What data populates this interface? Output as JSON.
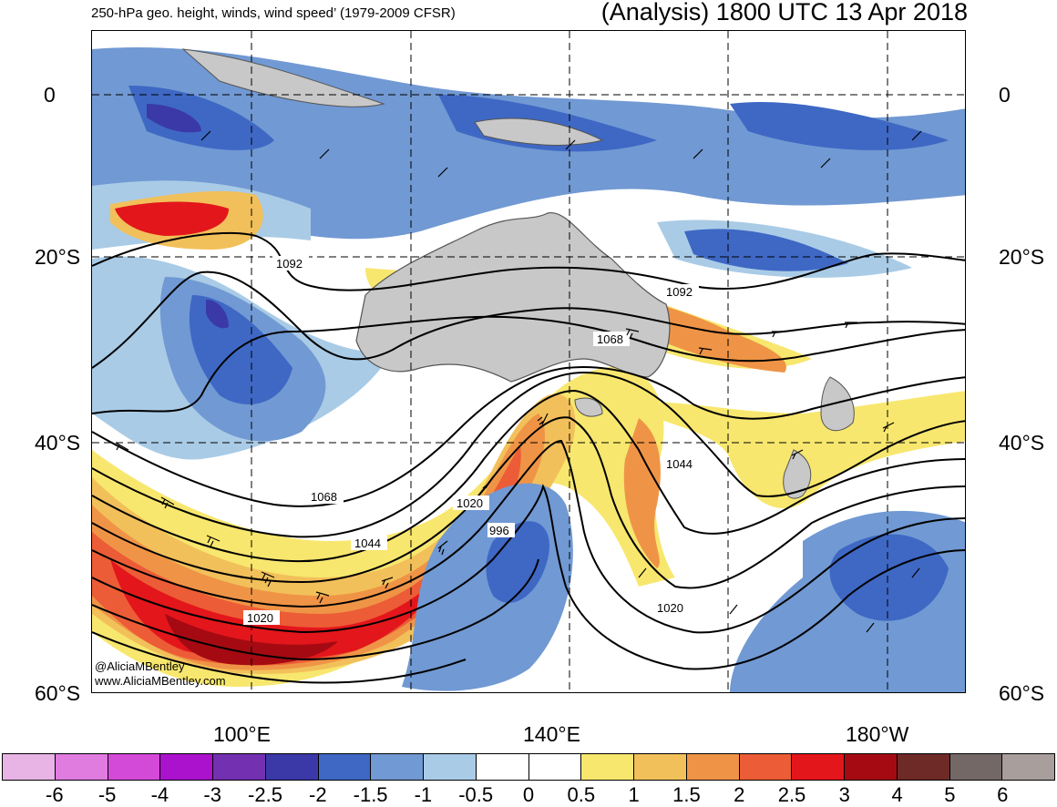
{
  "header": {
    "left_title": "250-hPa geo. height, winds, wind speed’ (1979-2009 CFSR)",
    "right_title": "(Analysis) 1800 UTC 13 Apr 2018"
  },
  "axes": {
    "lat_labels_left": [
      "0",
      "20°S",
      "40°S",
      "60°S"
    ],
    "lat_labels_right": [
      "0",
      "20°S",
      "40°S",
      "60°S"
    ],
    "lon_labels": [
      "100°E",
      "140°E",
      "180°W"
    ]
  },
  "contour_labels": [
    "1092",
    "1092",
    "1068",
    "1068",
    "1044",
    "1044",
    "1020",
    "1020",
    "996",
    "1020"
  ],
  "credit": {
    "handle": "@AliciaMBentley",
    "site": "www.AliciaMBentley.com"
  },
  "colorbar": {
    "colors": [
      "#e8b4e6",
      "#e07be0",
      "#d44ad8",
      "#aa12cd",
      "#7330b0",
      "#3b39a8",
      "#3e68c4",
      "#7199d3",
      "#a9cbe6",
      "#ffffff",
      "#ffffff",
      "#f8e76e",
      "#f2c05a",
      "#ef9446",
      "#ec5c36",
      "#e3161b",
      "#a50a12",
      "#6e2a27",
      "#746867",
      "#a89e9c"
    ],
    "ticks": [
      "-6",
      "-5",
      "-4",
      "-3",
      "-2.5",
      "-2",
      "-1.5",
      "-1",
      "-0.5",
      "0",
      "0.5",
      "1",
      "1.5",
      "2",
      "2.5",
      "3",
      "4",
      "5",
      "6"
    ]
  },
  "map_colors": {
    "land": "#c8c8c8",
    "coastline": "#555555",
    "contour": "#000000"
  }
}
